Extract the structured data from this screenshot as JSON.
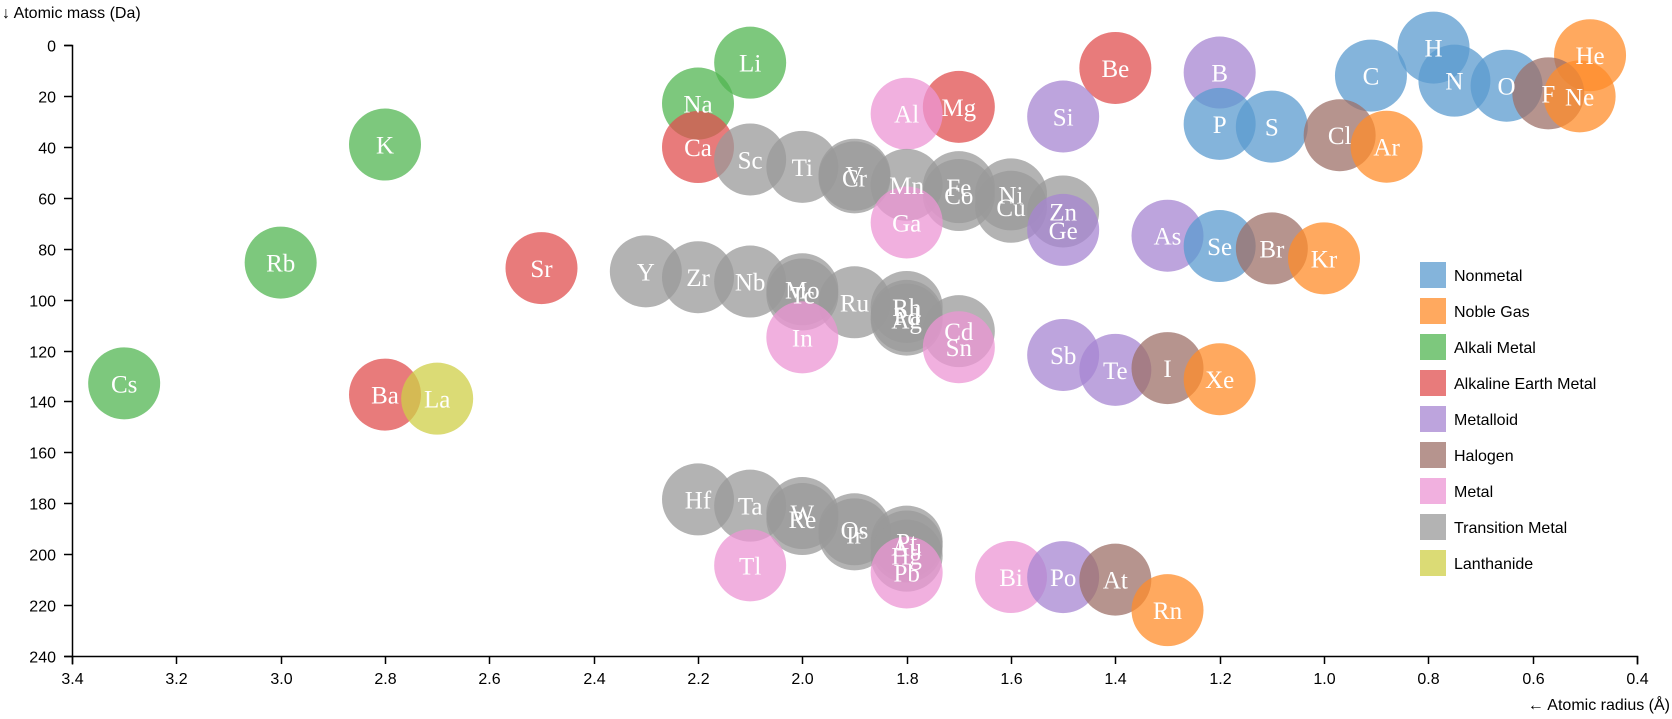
{
  "chart_data": {
    "type": "scatter",
    "title": "",
    "xlabel": "← Atomic radius (Å)",
    "ylabel": "↓ Atomic mass (Da)",
    "xlim": [
      3.4,
      0.4
    ],
    "ylim": [
      0,
      240
    ],
    "x_axis_reversed": true,
    "y_axis_reversed": true,
    "x_ticks": [
      "3.4",
      "3.2",
      "3.0",
      "2.8",
      "2.6",
      "2.4",
      "2.2",
      "2.0",
      "1.8",
      "1.6",
      "1.4",
      "1.2",
      "1.0",
      "0.8",
      "0.6",
      "0.4"
    ],
    "y_ticks": [
      "0",
      "20",
      "40",
      "60",
      "80",
      "100",
      "120",
      "140",
      "160",
      "180",
      "200",
      "220",
      "240"
    ],
    "legend_position": "right",
    "categories": [
      {
        "name": "Nonmetal",
        "color": "#5b9bcf"
      },
      {
        "name": "Noble Gas",
        "color": "#ff8c2a"
      },
      {
        "name": "Alkali Metal",
        "color": "#51b551"
      },
      {
        "name": "Alkaline Earth Metal",
        "color": "#e04f4f"
      },
      {
        "name": "Metalloid",
        "color": "#a785d2"
      },
      {
        "name": "Halogen",
        "color": "#9e7068"
      },
      {
        "name": "Metal",
        "color": "#ec96d4"
      },
      {
        "name": "Transition Metal",
        "color": "#9a9a9a"
      },
      {
        "name": "Lanthanide",
        "color": "#cfcf47"
      }
    ],
    "points": [
      {
        "label": "H",
        "x": 0.79,
        "y": 1.008,
        "category": "Nonmetal"
      },
      {
        "label": "He",
        "x": 0.49,
        "y": 4.0026,
        "category": "Noble Gas"
      },
      {
        "label": "Li",
        "x": 2.1,
        "y": 6.94,
        "category": "Alkali Metal"
      },
      {
        "label": "Be",
        "x": 1.4,
        "y": 9.012,
        "category": "Alkaline Earth Metal"
      },
      {
        "label": "B",
        "x": 1.2,
        "y": 10.81,
        "category": "Metalloid"
      },
      {
        "label": "C",
        "x": 0.91,
        "y": 12.011,
        "category": "Nonmetal"
      },
      {
        "label": "N",
        "x": 0.75,
        "y": 14.007,
        "category": "Nonmetal"
      },
      {
        "label": "O",
        "x": 0.65,
        "y": 15.999,
        "category": "Nonmetal"
      },
      {
        "label": "F",
        "x": 0.57,
        "y": 18.998,
        "category": "Halogen"
      },
      {
        "label": "Ne",
        "x": 0.51,
        "y": 20.18,
        "category": "Noble Gas"
      },
      {
        "label": "Na",
        "x": 2.2,
        "y": 22.99,
        "category": "Alkali Metal"
      },
      {
        "label": "Mg",
        "x": 1.7,
        "y": 24.305,
        "category": "Alkaline Earth Metal"
      },
      {
        "label": "Al",
        "x": 1.8,
        "y": 26.982,
        "category": "Metal"
      },
      {
        "label": "Si",
        "x": 1.5,
        "y": 28.085,
        "category": "Metalloid"
      },
      {
        "label": "P",
        "x": 1.2,
        "y": 30.974,
        "category": "Nonmetal"
      },
      {
        "label": "S",
        "x": 1.1,
        "y": 32.06,
        "category": "Nonmetal"
      },
      {
        "label": "Cl",
        "x": 0.97,
        "y": 35.45,
        "category": "Halogen"
      },
      {
        "label": "Ar",
        "x": 0.88,
        "y": 39.948,
        "category": "Noble Gas"
      },
      {
        "label": "K",
        "x": 2.8,
        "y": 39.098,
        "category": "Alkali Metal"
      },
      {
        "label": "Ca",
        "x": 2.2,
        "y": 40.078,
        "category": "Alkaline Earth Metal"
      },
      {
        "label": "Sc",
        "x": 2.1,
        "y": 44.956,
        "category": "Transition Metal"
      },
      {
        "label": "Ti",
        "x": 2.0,
        "y": 47.867,
        "category": "Transition Metal"
      },
      {
        "label": "V",
        "x": 1.9,
        "y": 50.942,
        "category": "Transition Metal"
      },
      {
        "label": "Cr",
        "x": 1.9,
        "y": 51.996,
        "category": "Transition Metal"
      },
      {
        "label": "Mn",
        "x": 1.8,
        "y": 54.938,
        "category": "Transition Metal"
      },
      {
        "label": "Fe",
        "x": 1.7,
        "y": 55.845,
        "category": "Transition Metal"
      },
      {
        "label": "Co",
        "x": 1.7,
        "y": 58.933,
        "category": "Transition Metal"
      },
      {
        "label": "Ni",
        "x": 1.6,
        "y": 58.693,
        "category": "Transition Metal"
      },
      {
        "label": "Cu",
        "x": 1.6,
        "y": 63.546,
        "category": "Transition Metal"
      },
      {
        "label": "Zn",
        "x": 1.5,
        "y": 65.38,
        "category": "Transition Metal"
      },
      {
        "label": "Ga",
        "x": 1.8,
        "y": 69.723,
        "category": "Metal"
      },
      {
        "label": "Ge",
        "x": 1.5,
        "y": 72.63,
        "category": "Metalloid"
      },
      {
        "label": "As",
        "x": 1.3,
        "y": 74.922,
        "category": "Metalloid"
      },
      {
        "label": "Se",
        "x": 1.2,
        "y": 78.971,
        "category": "Nonmetal"
      },
      {
        "label": "Br",
        "x": 1.1,
        "y": 79.904,
        "category": "Halogen"
      },
      {
        "label": "Kr",
        "x": 1.0,
        "y": 83.798,
        "category": "Noble Gas"
      },
      {
        "label": "Rb",
        "x": 3.0,
        "y": 85.468,
        "category": "Alkali Metal"
      },
      {
        "label": "Sr",
        "x": 2.5,
        "y": 87.62,
        "category": "Alkaline Earth Metal"
      },
      {
        "label": "Y",
        "x": 2.3,
        "y": 88.906,
        "category": "Transition Metal"
      },
      {
        "label": "Zr",
        "x": 2.2,
        "y": 91.224,
        "category": "Transition Metal"
      },
      {
        "label": "Nb",
        "x": 2.1,
        "y": 92.906,
        "category": "Transition Metal"
      },
      {
        "label": "Mo",
        "x": 2.0,
        "y": 95.95,
        "category": "Transition Metal"
      },
      {
        "label": "Tc",
        "x": 2.0,
        "y": 98,
        "category": "Transition Metal"
      },
      {
        "label": "Ru",
        "x": 1.9,
        "y": 101.07,
        "category": "Transition Metal"
      },
      {
        "label": "Rh",
        "x": 1.8,
        "y": 102.91,
        "category": "Transition Metal"
      },
      {
        "label": "Pd",
        "x": 1.8,
        "y": 106.42,
        "category": "Transition Metal"
      },
      {
        "label": "Ag",
        "x": 1.8,
        "y": 107.87,
        "category": "Transition Metal"
      },
      {
        "label": "Cd",
        "x": 1.7,
        "y": 112.41,
        "category": "Transition Metal"
      },
      {
        "label": "In",
        "x": 2.0,
        "y": 114.82,
        "category": "Metal"
      },
      {
        "label": "Sn",
        "x": 1.7,
        "y": 118.71,
        "category": "Metal"
      },
      {
        "label": "Sb",
        "x": 1.5,
        "y": 121.76,
        "category": "Metalloid"
      },
      {
        "label": "Te",
        "x": 1.4,
        "y": 127.6,
        "category": "Metalloid"
      },
      {
        "label": "I",
        "x": 1.3,
        "y": 126.9,
        "category": "Halogen"
      },
      {
        "label": "Xe",
        "x": 1.2,
        "y": 131.29,
        "category": "Noble Gas"
      },
      {
        "label": "Cs",
        "x": 3.3,
        "y": 132.91,
        "category": "Alkali Metal"
      },
      {
        "label": "Ba",
        "x": 2.8,
        "y": 137.33,
        "category": "Alkaline Earth Metal"
      },
      {
        "label": "La",
        "x": 2.7,
        "y": 138.91,
        "category": "Lanthanide"
      },
      {
        "label": "Hf",
        "x": 2.2,
        "y": 178.49,
        "category": "Transition Metal"
      },
      {
        "label": "Ta",
        "x": 2.1,
        "y": 180.95,
        "category": "Transition Metal"
      },
      {
        "label": "W",
        "x": 2.0,
        "y": 183.84,
        "category": "Transition Metal"
      },
      {
        "label": "Re",
        "x": 2.0,
        "y": 186.21,
        "category": "Transition Metal"
      },
      {
        "label": "Os",
        "x": 1.9,
        "y": 190.23,
        "category": "Transition Metal"
      },
      {
        "label": "Ir",
        "x": 1.9,
        "y": 192.22,
        "category": "Transition Metal"
      },
      {
        "label": "Pt",
        "x": 1.8,
        "y": 195.08,
        "category": "Transition Metal"
      },
      {
        "label": "Au",
        "x": 1.8,
        "y": 196.97,
        "category": "Transition Metal"
      },
      {
        "label": "Hg",
        "x": 1.8,
        "y": 200.59,
        "category": "Transition Metal"
      },
      {
        "label": "Tl",
        "x": 2.1,
        "y": 204.38,
        "category": "Metal"
      },
      {
        "label": "Pb",
        "x": 1.8,
        "y": 207.2,
        "category": "Metal"
      },
      {
        "label": "Bi",
        "x": 1.6,
        "y": 208.98,
        "category": "Metal"
      },
      {
        "label": "Po",
        "x": 1.5,
        "y": 209,
        "category": "Metalloid"
      },
      {
        "label": "At",
        "x": 1.4,
        "y": 210,
        "category": "Halogen"
      },
      {
        "label": "Rn",
        "x": 1.3,
        "y": 222,
        "category": "Noble Gas"
      }
    ]
  }
}
